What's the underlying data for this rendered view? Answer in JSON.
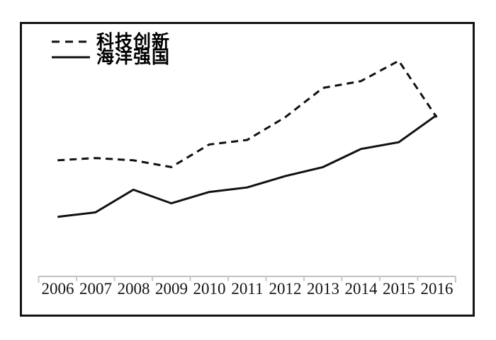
{
  "chart_data": {
    "type": "line",
    "title": "",
    "xlabel": "",
    "ylabel": "",
    "categories": [
      "2006",
      "2007",
      "2008",
      "2009",
      "2010",
      "2011",
      "2012",
      "2013",
      "2014",
      "2015",
      "2016"
    ],
    "series": [
      {
        "name": "科技创新",
        "style": "dashed",
        "color": "#111111",
        "values": [
          51,
          52,
          51,
          48,
          58,
          60,
          70,
          83,
          86,
          95,
          70
        ]
      },
      {
        "name": "海洋强国",
        "style": "solid",
        "color": "#111111",
        "values": [
          26,
          28,
          38,
          32,
          37,
          39,
          44,
          48,
          56,
          59,
          71
        ]
      }
    ],
    "ylim": [
      0,
      110
    ],
    "y_axis_shown": false,
    "grid": false,
    "legend_position": "top-left",
    "axis_color": "#c0c0c0",
    "tick_color": "#c6c6c6"
  }
}
